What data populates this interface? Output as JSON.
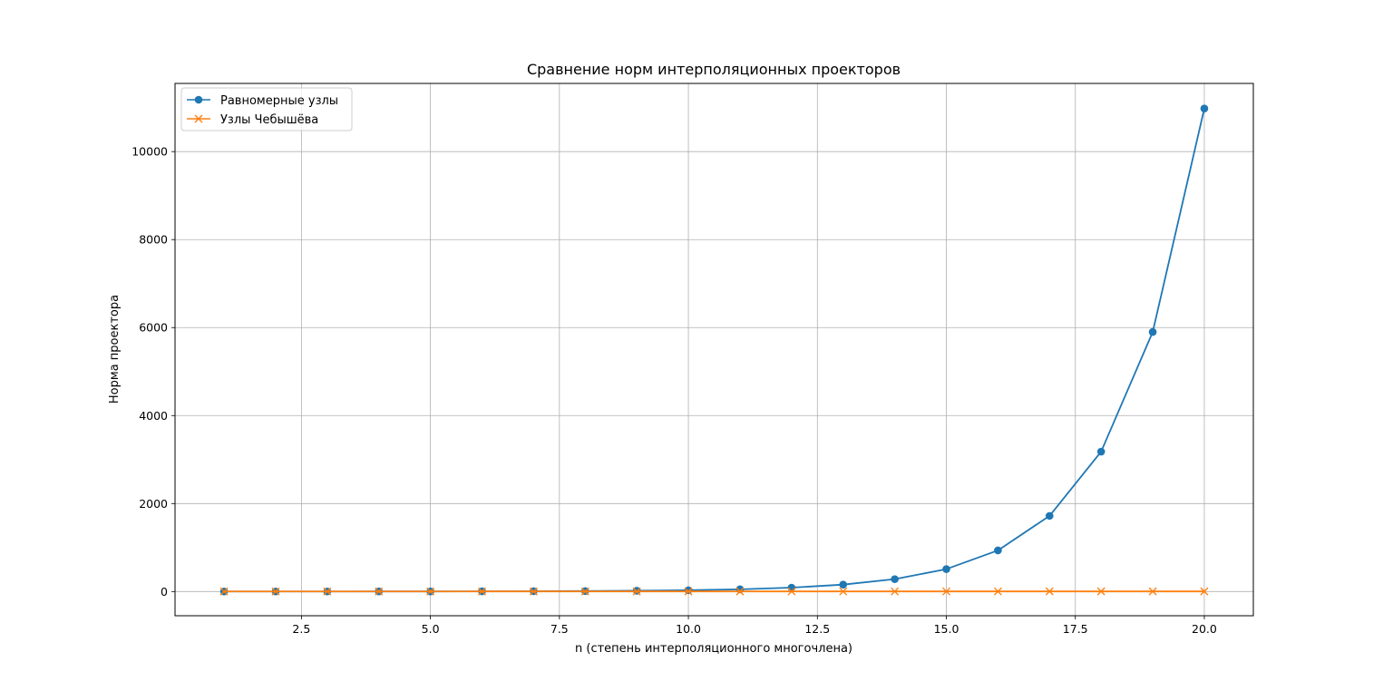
{
  "chart_data": {
    "type": "line",
    "title": "Сравнение норм интерполяционных проекторов",
    "xlabel": "n (степень интерполяционного многочлена)",
    "ylabel": "Норма проектора",
    "xlim": [
      0.05,
      20.95
    ],
    "ylim": [
      -550,
      11550
    ],
    "xticks": [
      2.5,
      5.0,
      7.5,
      10.0,
      12.5,
      15.0,
      17.5,
      20.0
    ],
    "xtick_labels": [
      "2.5",
      "5.0",
      "7.5",
      "10.0",
      "12.5",
      "15.0",
      "17.5",
      "20.0"
    ],
    "yticks": [
      0,
      2000,
      4000,
      6000,
      8000,
      10000
    ],
    "ytick_labels": [
      "0",
      "2000",
      "4000",
      "6000",
      "8000",
      "10000"
    ],
    "grid": true,
    "legend_position": "top-left",
    "x": [
      1,
      2,
      3,
      4,
      5,
      6,
      7,
      8,
      9,
      10,
      11,
      12,
      13,
      14,
      15,
      16,
      17,
      18,
      19,
      20
    ],
    "series": [
      {
        "name": "Равномерные узлы",
        "color": "#1f77b4",
        "marker": "circle",
        "values": [
          1,
          1.25,
          1.63,
          2.21,
          3.11,
          4.55,
          6.93,
          10.9,
          17.9,
          30,
          51,
          89,
          157,
          282,
          510,
          935,
          1720,
          3180,
          5900,
          10980
        ]
      },
      {
        "name": "Узлы Чебышёва",
        "color": "#ff7f0e",
        "marker": "x",
        "values": [
          1,
          1.67,
          1.8,
          1.99,
          2.1,
          2.2,
          2.29,
          2.36,
          2.43,
          2.49,
          2.55,
          2.6,
          2.65,
          2.69,
          2.73,
          2.77,
          2.81,
          2.85,
          2.88,
          2.91
        ]
      }
    ]
  }
}
